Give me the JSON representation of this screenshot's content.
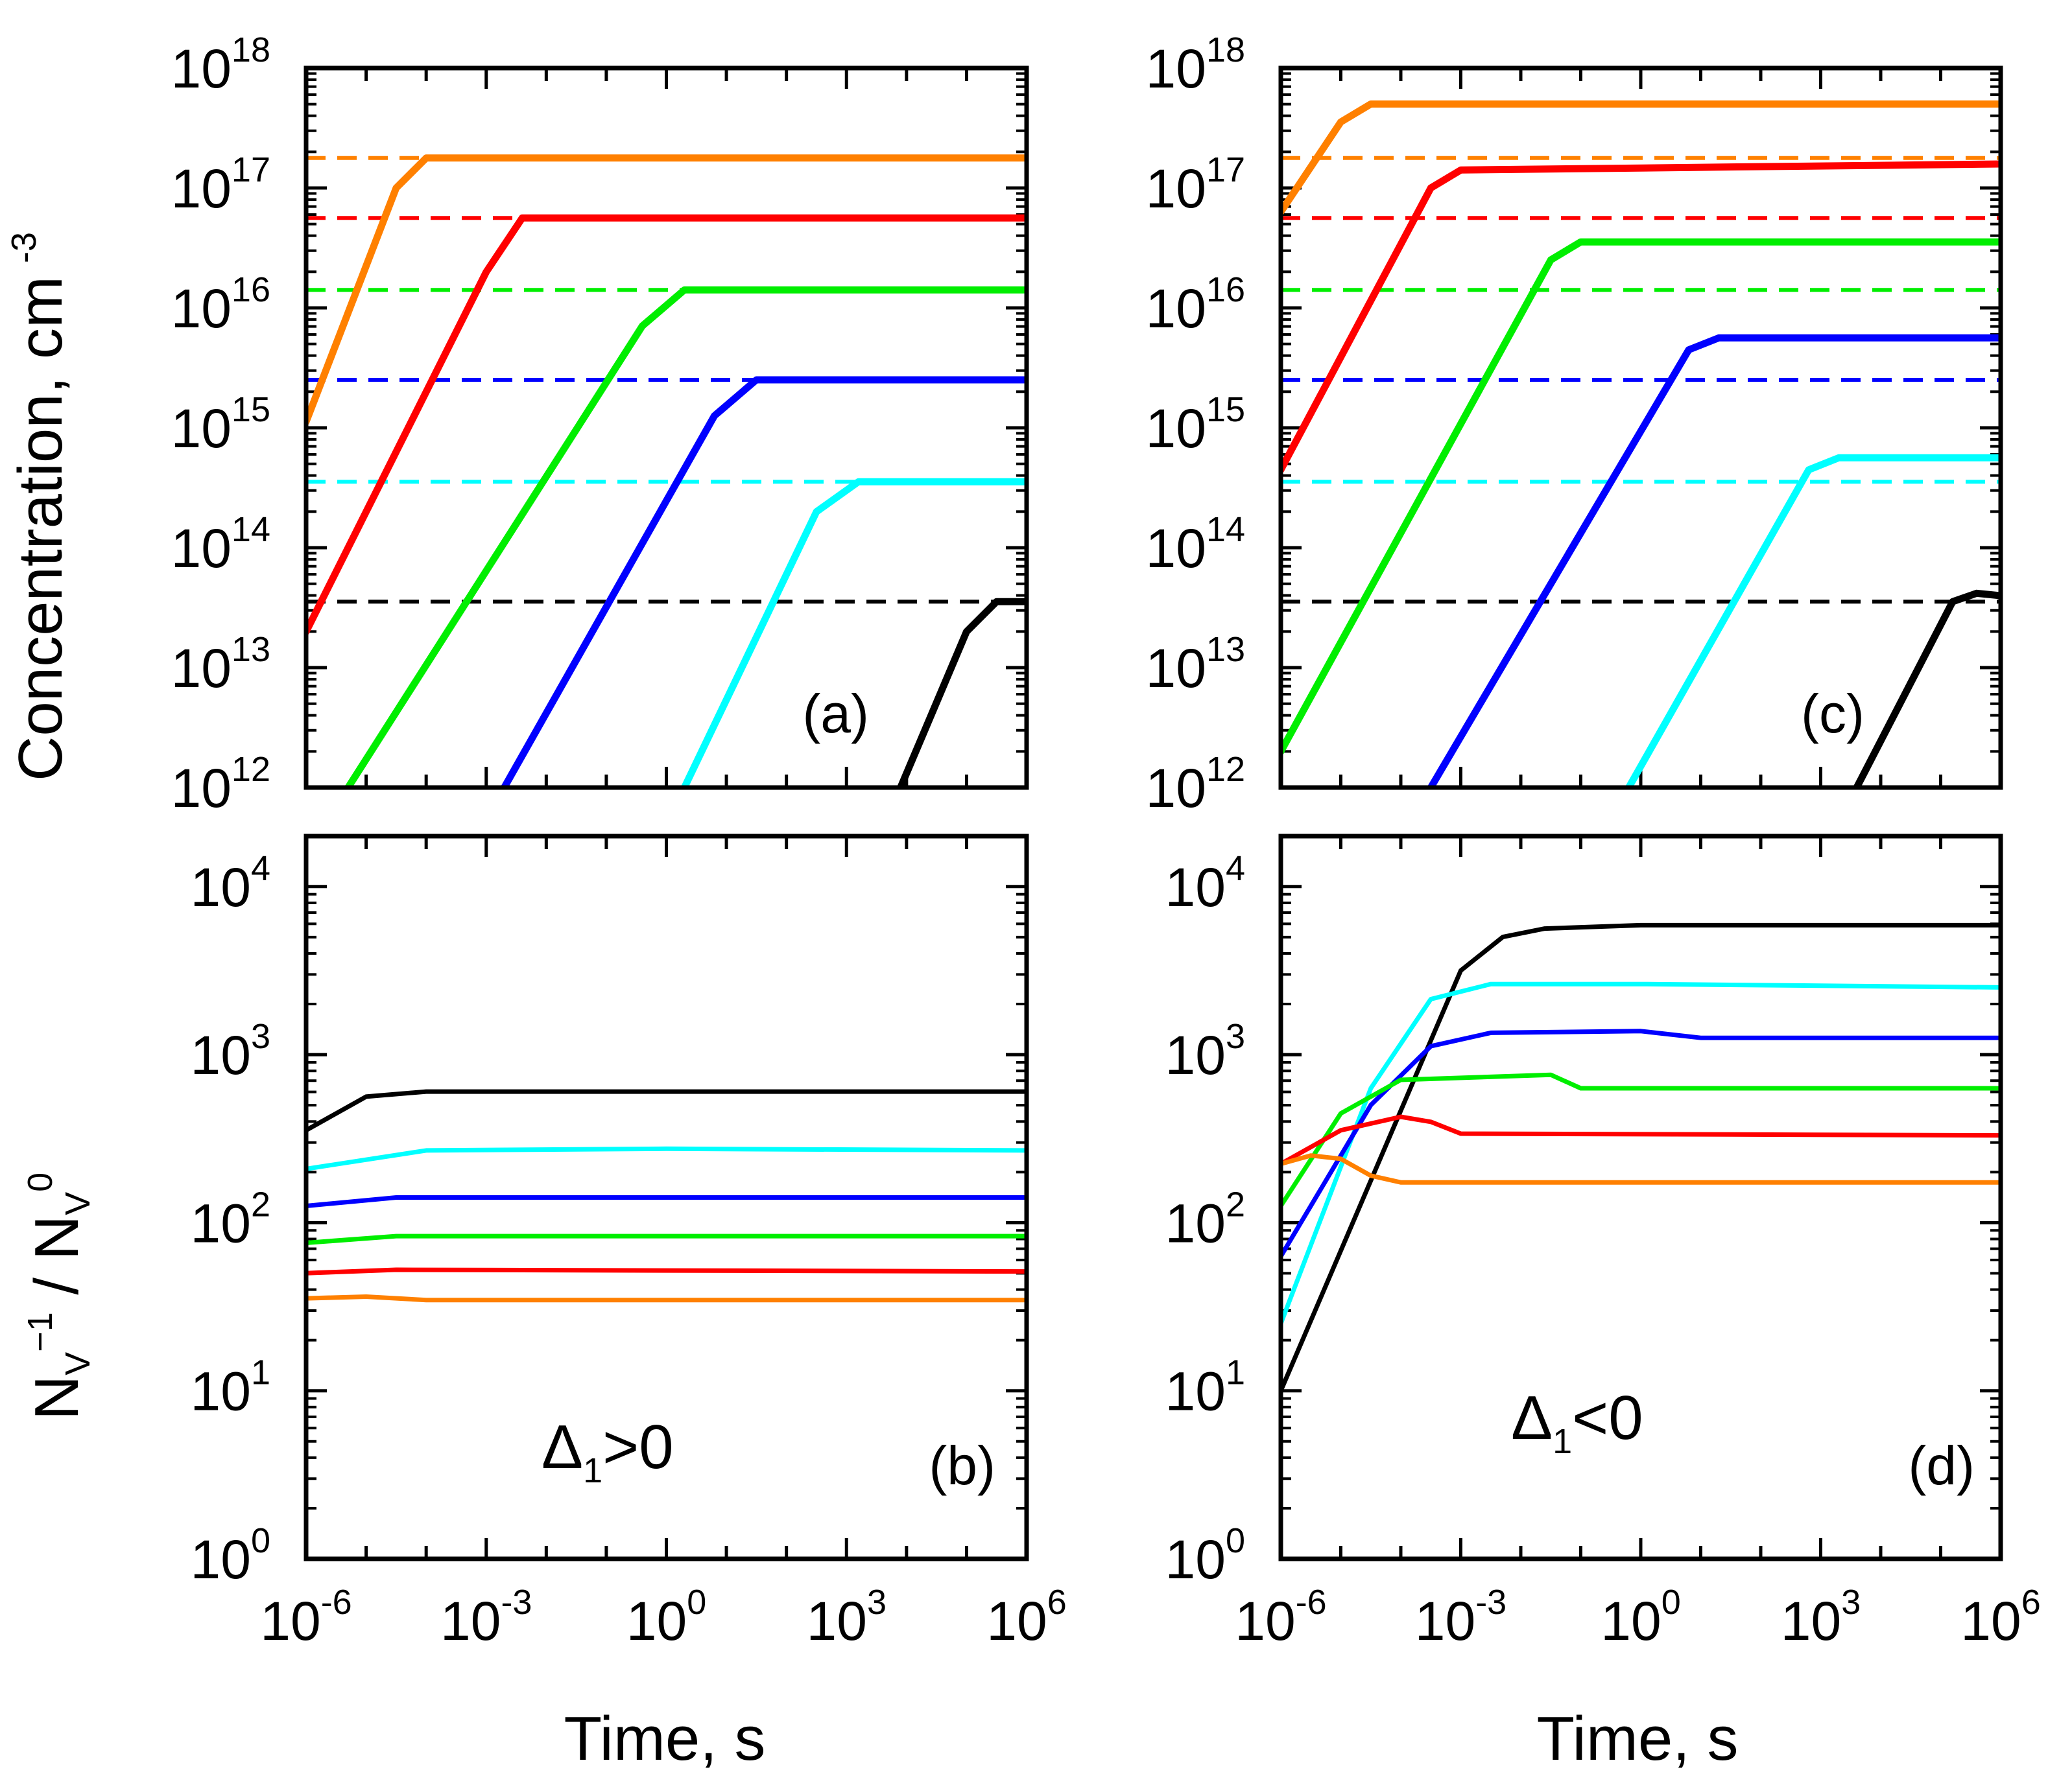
{
  "chart_data": [
    {
      "panel": "(a)",
      "type": "line",
      "title": "",
      "xlabel": "Time, s",
      "ylabel": "Concentration, cm -3",
      "ylabel_main": "Concentration, cm",
      "ylabel_sup": "-3",
      "xscale": "log",
      "yscale": "log",
      "xlim_log10": [
        -6,
        6
      ],
      "ylim_log10": [
        12,
        18
      ],
      "yticks": [
        {
          "base": "10",
          "exp": "12"
        },
        {
          "base": "10",
          "exp": "13"
        },
        {
          "base": "10",
          "exp": "14"
        },
        {
          "base": "10",
          "exp": "15"
        },
        {
          "base": "10",
          "exp": "16"
        },
        {
          "base": "10",
          "exp": "17"
        },
        {
          "base": "10",
          "exp": "18"
        }
      ],
      "series": [
        {
          "name": "orange",
          "color": "#ff8000",
          "x_log10": [
            -6,
            -4.5,
            -4,
            6
          ],
          "y_log10": [
            15.05,
            17.0,
            17.25,
            17.25
          ]
        },
        {
          "name": "red",
          "color": "#ff0000",
          "x_log10": [
            -6,
            -3,
            -2.4,
            6
          ],
          "y_log10": [
            13.3,
            16.3,
            16.75,
            16.75
          ]
        },
        {
          "name": "green",
          "color": "#00ee00",
          "x_log10": [
            -5.3,
            -0.4,
            0.3,
            6
          ],
          "y_log10": [
            12.0,
            15.85,
            16.15,
            16.15
          ]
        },
        {
          "name": "blue",
          "color": "#0000ff",
          "x_log10": [
            -2.7,
            0.8,
            1.5,
            6
          ],
          "y_log10": [
            12.0,
            15.1,
            15.4,
            15.4
          ]
        },
        {
          "name": "cyan",
          "color": "#00ffff",
          "x_log10": [
            0.3,
            2.5,
            3.2,
            6
          ],
          "y_log10": [
            12.0,
            14.3,
            14.55,
            14.55
          ]
        },
        {
          "name": "black",
          "color": "#000000",
          "x_log10": [
            3.9,
            5.0,
            5.5,
            6
          ],
          "y_log10": [
            12.0,
            13.3,
            13.55,
            13.55
          ]
        }
      ],
      "reference_levels": [
        {
          "name": "orange",
          "color": "#ff8000",
          "y_log10": 17.25
        },
        {
          "name": "red",
          "color": "#ff0000",
          "y_log10": 16.75
        },
        {
          "name": "green",
          "color": "#00ee00",
          "y_log10": 16.15
        },
        {
          "name": "blue",
          "color": "#0000ff",
          "y_log10": 15.4
        },
        {
          "name": "cyan",
          "color": "#00ffff",
          "y_log10": 14.55
        },
        {
          "name": "black",
          "color": "#000000",
          "y_log10": 13.55
        }
      ]
    },
    {
      "panel": "(b)",
      "type": "line",
      "xlabel": "Time, s",
      "ylabel": "NV-1 / NV0",
      "ylabel_parts": [
        "N",
        "V",
        "−1",
        " / N",
        "V",
        "0"
      ],
      "annotation": {
        "main": "Δ",
        "sub": "1",
        "rest": ">0"
      },
      "xscale": "log",
      "yscale": "log",
      "xlim_log10": [
        -6,
        6
      ],
      "ylim_log10": [
        0,
        4.3
      ],
      "xticks": [
        {
          "base": "10",
          "exp": "-6"
        },
        {
          "base": "10",
          "exp": "-3"
        },
        {
          "base": "10",
          "exp": "0"
        },
        {
          "base": "10",
          "exp": "3"
        },
        {
          "base": "10",
          "exp": "6"
        }
      ],
      "yticks": [
        {
          "base": "10",
          "exp": "0"
        },
        {
          "base": "10",
          "exp": "1"
        },
        {
          "base": "10",
          "exp": "2"
        },
        {
          "base": "10",
          "exp": "3"
        },
        {
          "base": "10",
          "exp": "4"
        }
      ],
      "series": [
        {
          "name": "black",
          "color": "#000000",
          "x_log10": [
            -6,
            -5,
            -4,
            6
          ],
          "y_log10": [
            2.55,
            2.75,
            2.78,
            2.78
          ]
        },
        {
          "name": "cyan",
          "color": "#00ffff",
          "x_log10": [
            -6,
            -4,
            0,
            6
          ],
          "y_log10": [
            2.32,
            2.43,
            2.44,
            2.43
          ]
        },
        {
          "name": "blue",
          "color": "#0000ff",
          "x_log10": [
            -6,
            -4.5,
            6
          ],
          "y_log10": [
            2.1,
            2.15,
            2.15
          ]
        },
        {
          "name": "green",
          "color": "#00ee00",
          "x_log10": [
            -6,
            -4.5,
            6
          ],
          "y_log10": [
            1.88,
            1.92,
            1.92
          ]
        },
        {
          "name": "red",
          "color": "#ff0000",
          "x_log10": [
            -6,
            -4.5,
            6
          ],
          "y_log10": [
            1.7,
            1.72,
            1.71
          ]
        },
        {
          "name": "orange",
          "color": "#ff8000",
          "x_log10": [
            -6,
            -5,
            -4,
            6
          ],
          "y_log10": [
            1.55,
            1.56,
            1.54,
            1.54
          ]
        }
      ]
    },
    {
      "panel": "(c)",
      "type": "line",
      "xlabel": "",
      "ylabel": "",
      "xscale": "log",
      "yscale": "log",
      "xlim_log10": [
        -6,
        6
      ],
      "ylim_log10": [
        12,
        18
      ],
      "yticks": [
        {
          "base": "10",
          "exp": "12"
        },
        {
          "base": "10",
          "exp": "13"
        },
        {
          "base": "10",
          "exp": "14"
        },
        {
          "base": "10",
          "exp": "15"
        },
        {
          "base": "10",
          "exp": "16"
        },
        {
          "base": "10",
          "exp": "17"
        },
        {
          "base": "10",
          "exp": "18"
        }
      ],
      "series": [
        {
          "name": "orange",
          "color": "#ff8000",
          "x_log10": [
            -6,
            -5,
            -4.5,
            6
          ],
          "y_log10": [
            16.8,
            17.55,
            17.7,
            17.7
          ]
        },
        {
          "name": "red",
          "color": "#ff0000",
          "x_log10": [
            -6,
            -3.5,
            -3,
            6
          ],
          "y_log10": [
            14.65,
            17.0,
            17.15,
            17.2
          ]
        },
        {
          "name": "green",
          "color": "#00ee00",
          "x_log10": [
            -6,
            -1.5,
            -1.0,
            6
          ],
          "y_log10": [
            12.3,
            16.4,
            16.55,
            16.55
          ]
        },
        {
          "name": "blue",
          "color": "#0000ff",
          "x_log10": [
            -3.5,
            0.8,
            1.3,
            6
          ],
          "y_log10": [
            12.0,
            15.65,
            15.75,
            15.75
          ]
        },
        {
          "name": "cyan",
          "color": "#00ffff",
          "x_log10": [
            -0.2,
            2.8,
            3.3,
            6
          ],
          "y_log10": [
            12.0,
            14.65,
            14.75,
            14.75
          ]
        },
        {
          "name": "black",
          "color": "#000000",
          "x_log10": [
            3.6,
            5.2,
            5.6,
            6
          ],
          "y_log10": [
            12.0,
            13.55,
            13.62,
            13.6
          ]
        }
      ],
      "reference_levels": [
        {
          "name": "orange",
          "color": "#ff8000",
          "y_log10": 17.25
        },
        {
          "name": "red",
          "color": "#ff0000",
          "y_log10": 16.75
        },
        {
          "name": "green",
          "color": "#00ee00",
          "y_log10": 16.15
        },
        {
          "name": "blue",
          "color": "#0000ff",
          "y_log10": 15.4
        },
        {
          "name": "cyan",
          "color": "#00ffff",
          "y_log10": 14.55
        },
        {
          "name": "black",
          "color": "#000000",
          "y_log10": 13.55
        }
      ]
    },
    {
      "panel": "(d)",
      "type": "line",
      "xlabel": "Time, s",
      "ylabel": "",
      "annotation": {
        "main": "Δ",
        "sub": "1",
        "rest": "<0"
      },
      "xscale": "log",
      "yscale": "log",
      "xlim_log10": [
        -6,
        6
      ],
      "ylim_log10": [
        0,
        4.3
      ],
      "xticks": [
        {
          "base": "10",
          "exp": "-6"
        },
        {
          "base": "10",
          "exp": "-3"
        },
        {
          "base": "10",
          "exp": "0"
        },
        {
          "base": "10",
          "exp": "3"
        },
        {
          "base": "10",
          "exp": "6"
        }
      ],
      "yticks": [
        {
          "base": "10",
          "exp": "0"
        },
        {
          "base": "10",
          "exp": "1"
        },
        {
          "base": "10",
          "exp": "2"
        },
        {
          "base": "10",
          "exp": "3"
        },
        {
          "base": "10",
          "exp": "4"
        }
      ],
      "series": [
        {
          "name": "black",
          "color": "#000000",
          "x_log10": [
            -6,
            -3,
            -2.3,
            -1.6,
            0,
            6
          ],
          "y_log10": [
            1.0,
            3.5,
            3.7,
            3.75,
            3.77,
            3.77
          ]
        },
        {
          "name": "cyan",
          "color": "#00ffff",
          "x_log10": [
            -6,
            -4.5,
            -3.5,
            -2.5,
            0,
            6
          ],
          "y_log10": [
            1.4,
            2.8,
            3.33,
            3.42,
            3.42,
            3.4
          ]
        },
        {
          "name": "blue",
          "color": "#0000ff",
          "x_log10": [
            -6,
            -4.5,
            -3.5,
            -2.5,
            0,
            1,
            6
          ],
          "y_log10": [
            1.8,
            2.7,
            3.05,
            3.13,
            3.14,
            3.1,
            3.1
          ]
        },
        {
          "name": "green",
          "color": "#00ee00",
          "x_log10": [
            -6,
            -5,
            -4,
            -1.5,
            -1,
            6
          ],
          "y_log10": [
            2.1,
            2.65,
            2.85,
            2.88,
            2.8,
            2.8
          ]
        },
        {
          "name": "red",
          "color": "#ff0000",
          "x_log10": [
            -6,
            -5,
            -4,
            -3.5,
            -3,
            6
          ],
          "y_log10": [
            2.35,
            2.55,
            2.63,
            2.6,
            2.53,
            2.52
          ]
        },
        {
          "name": "orange",
          "color": "#ff8000",
          "x_log10": [
            -6,
            -5.5,
            -5,
            -4.5,
            -4,
            6
          ],
          "y_log10": [
            2.35,
            2.4,
            2.38,
            2.28,
            2.24,
            2.24
          ]
        }
      ]
    }
  ]
}
